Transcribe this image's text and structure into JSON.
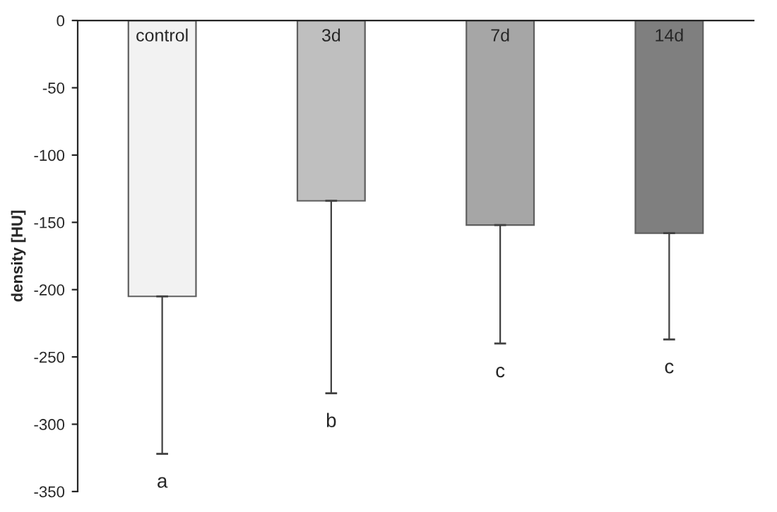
{
  "chart_data": {
    "type": "bar",
    "ylabel": "density [HU]",
    "categories": [
      "control",
      "3d",
      "7d",
      "14d"
    ],
    "values": [
      -205,
      -134,
      -152,
      -158
    ],
    "colors": [
      "#f2f2f2",
      "#bfbfbf",
      "#a6a6a6",
      "#7f7f7f"
    ],
    "errors": [
      [
        -322,
        -205
      ],
      [
        -277,
        -134
      ],
      [
        -240,
        -152
      ],
      [
        -237,
        -158
      ]
    ],
    "ylim": [
      -350,
      0
    ],
    "yticks": [
      -350,
      -300,
      -250,
      -200,
      -150,
      -100,
      -50,
      0
    ],
    "grid": false,
    "annotations": [
      "a",
      "b",
      "c",
      "c"
    ]
  }
}
